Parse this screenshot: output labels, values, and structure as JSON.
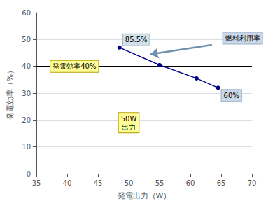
{
  "chart_data": {
    "type": "line",
    "x": [
      48.5,
      55.0,
      61.0,
      64.5
    ],
    "values": [
      47.0,
      40.5,
      35.5,
      32.0
    ],
    "color": "#00008B",
    "marker": "circle",
    "xlim": [
      35,
      70
    ],
    "ylim": [
      0,
      60
    ],
    "xticks": [
      35,
      40,
      45,
      50,
      55,
      60,
      65,
      70
    ],
    "yticks": [
      0,
      10,
      20,
      30,
      40,
      50,
      60
    ],
    "xlabel": "発電出力（W）",
    "ylabel": "発電効率（%）",
    "grid": true,
    "reference_lines": {
      "y": [
        40
      ],
      "x": [
        50
      ],
      "color": "#000000"
    },
    "annotations": [
      {
        "text": "発電効率40%",
        "x": 36.5,
        "y": 40,
        "position": "right",
        "color": "#FFFF99",
        "edge": "#B8A000"
      },
      {
        "text": "50W\n出力",
        "x": 50,
        "y": 19,
        "position": "center",
        "color": "#FFFF99",
        "edge": "#B8A000"
      },
      {
        "text": "85.5%",
        "x": 48.5,
        "y": 47,
        "position": "above-right",
        "color": "#D0E0E8",
        "edge": "#A0B0C0"
      },
      {
        "text": "60%",
        "x": 64.5,
        "y": 32,
        "position": "below-right",
        "color": "#C8D8E8",
        "edge": "#A0B0C0"
      },
      {
        "text": "燃料利用率",
        "x": 64.5,
        "y": 50.5,
        "position": "right",
        "color": "#C8D8E8",
        "edge": "#A0B0C0"
      }
    ],
    "arrows": [
      {
        "from": [
          63.5,
          48.0
        ],
        "to": [
          53.5,
          44.5
        ],
        "color": "#7090B0"
      }
    ]
  }
}
